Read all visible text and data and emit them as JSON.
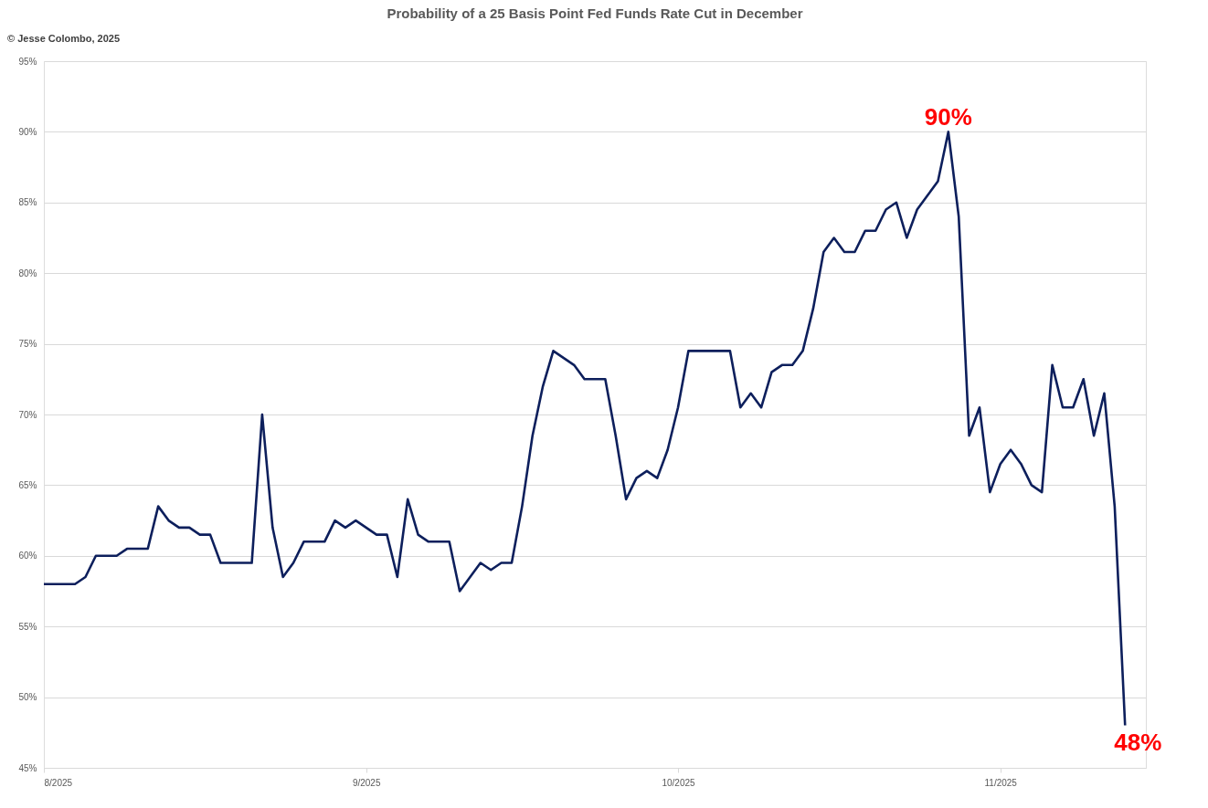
{
  "chart_data": {
    "type": "line",
    "title": "Probability of a 25 Basis Point Fed Funds Rate Cut in December",
    "x": [
      "2025-08-01",
      "2025-08-02",
      "2025-08-03",
      "2025-08-04",
      "2025-08-05",
      "2025-08-06",
      "2025-08-07",
      "2025-08-08",
      "2025-08-09",
      "2025-08-10",
      "2025-08-11",
      "2025-08-12",
      "2025-08-13",
      "2025-08-14",
      "2025-08-15",
      "2025-08-16",
      "2025-08-17",
      "2025-08-18",
      "2025-08-19",
      "2025-08-20",
      "2025-08-21",
      "2025-08-22",
      "2025-08-23",
      "2025-08-24",
      "2025-08-25",
      "2025-08-26",
      "2025-08-27",
      "2025-08-28",
      "2025-08-29",
      "2025-08-30",
      "2025-08-31",
      "2025-09-01",
      "2025-09-02",
      "2025-09-03",
      "2025-09-04",
      "2025-09-05",
      "2025-09-06",
      "2025-09-07",
      "2025-09-08",
      "2025-09-09",
      "2025-09-10",
      "2025-09-11",
      "2025-09-12",
      "2025-09-13",
      "2025-09-14",
      "2025-09-15",
      "2025-09-16",
      "2025-09-17",
      "2025-09-18",
      "2025-09-19",
      "2025-09-20",
      "2025-09-21",
      "2025-09-22",
      "2025-09-23",
      "2025-09-24",
      "2025-09-25",
      "2025-09-26",
      "2025-09-27",
      "2025-09-28",
      "2025-09-29",
      "2025-09-30",
      "2025-10-01",
      "2025-10-02",
      "2025-10-03",
      "2025-10-04",
      "2025-10-05",
      "2025-10-06",
      "2025-10-07",
      "2025-10-08",
      "2025-10-09",
      "2025-10-10",
      "2025-10-11",
      "2025-10-12",
      "2025-10-13",
      "2025-10-14",
      "2025-10-15",
      "2025-10-16",
      "2025-10-17",
      "2025-10-18",
      "2025-10-19",
      "2025-10-20",
      "2025-10-21",
      "2025-10-22",
      "2025-10-23",
      "2025-10-24",
      "2025-10-25",
      "2025-10-26",
      "2025-10-27",
      "2025-10-28",
      "2025-10-29",
      "2025-10-30",
      "2025-10-31",
      "2025-11-01",
      "2025-11-02",
      "2025-11-03",
      "2025-11-04",
      "2025-11-05",
      "2025-11-06",
      "2025-11-07",
      "2025-11-08",
      "2025-11-09",
      "2025-11-10",
      "2025-11-11",
      "2025-11-12",
      "2025-11-13"
    ],
    "series": [
      {
        "color": "#0d1f5c",
        "values": [
          58,
          58,
          58,
          58,
          58.5,
          60,
          60,
          60,
          60.5,
          60.5,
          60.5,
          63.5,
          62.5,
          62,
          62,
          61.5,
          61.5,
          59.5,
          59.5,
          59.5,
          59.5,
          70,
          62,
          58.5,
          59.5,
          61,
          61,
          61,
          62.5,
          62,
          62.5,
          62,
          61.5,
          61.5,
          58.5,
          64,
          61.5,
          61,
          61,
          61,
          57.5,
          58.5,
          59.5,
          59,
          59.5,
          59.5,
          63.5,
          68.5,
          72,
          74.5,
          74,
          73.5,
          72.5,
          72.5,
          72.5,
          68.5,
          64,
          65.5,
          66,
          65.5,
          67.5,
          70.5,
          74.5,
          74.5,
          74.5,
          74.5,
          74.5,
          70.5,
          71.5,
          70.5,
          73,
          73.5,
          73.5,
          74.5,
          77.5,
          81.5,
          82.5,
          81.5,
          81.5,
          83,
          83,
          84.5,
          85,
          82.5,
          84.5,
          85.5,
          86.5,
          90,
          84,
          68.5,
          70.5,
          64.5,
          66.5,
          67.5,
          66.5,
          65,
          64.5,
          73.5,
          70.5,
          70.5,
          72.5,
          68.5,
          71.5,
          63.5,
          48
        ]
      }
    ],
    "xlim": [
      "2025-08-01",
      "2025-11-15"
    ],
    "xticks": [
      {
        "value": "2025-08-01",
        "label": "8/2025"
      },
      {
        "value": "2025-09-01",
        "label": "9/2025"
      },
      {
        "value": "2025-10-01",
        "label": "10/2025"
      },
      {
        "value": "2025-11-01",
        "label": "11/2025"
      }
    ],
    "ylim": [
      45,
      95
    ],
    "yticks": [
      {
        "value": 45,
        "label": "45%"
      },
      {
        "value": 50,
        "label": "50%"
      },
      {
        "value": 55,
        "label": "55%"
      },
      {
        "value": 60,
        "label": "60%"
      },
      {
        "value": 65,
        "label": "65%"
      },
      {
        "value": 70,
        "label": "70%"
      },
      {
        "value": 75,
        "label": "75%"
      },
      {
        "value": 80,
        "label": "80%"
      },
      {
        "value": 85,
        "label": "85%"
      },
      {
        "value": 90,
        "label": "90%"
      },
      {
        "value": 95,
        "label": "95%"
      }
    ],
    "grid": "y",
    "marker": "none",
    "line_style": "solid",
    "annotations": [
      "© Jesse Colombo, 2025",
      {
        "text": "90%",
        "x": "2025-10-27",
        "y": 90
      },
      {
        "text": "48%",
        "x": "2025-11-13",
        "y": 48
      }
    ]
  }
}
